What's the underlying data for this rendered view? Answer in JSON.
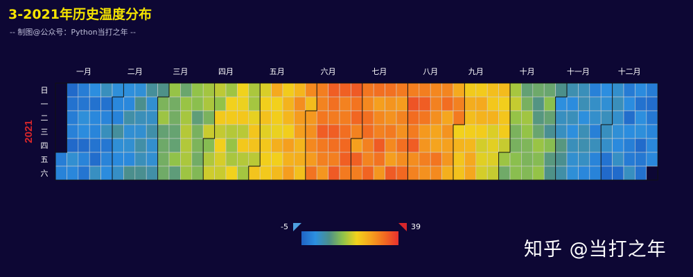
{
  "title": "3-2021年历史温度分布",
  "subtitle": "-- 制图@公众号：Python当打之年 --",
  "watermark": "知乎 @当打之年",
  "visual_map": {
    "min": -5,
    "max": 39,
    "min_label": "-5",
    "max_label": "39",
    "colors": [
      "#1f63c6",
      "#2c8fe0",
      "#4c8f8a",
      "#8fc24a",
      "#f2d21c",
      "#f5a21e",
      "#f26a21",
      "#e8312e"
    ]
  },
  "chart_data": {
    "type": "heatmap",
    "subtype": "calendar",
    "year_label": "2021",
    "first_weekday": 5,
    "months": [
      "一月",
      "二月",
      "三月",
      "四月",
      "五月",
      "六月",
      "七月",
      "八月",
      "九月",
      "十月",
      "十一月",
      "十二月"
    ],
    "weekdays": [
      "日",
      "一",
      "二",
      "三",
      "四",
      "五",
      "六"
    ],
    "monthly_temp_means": [
      -1,
      2,
      11,
      17,
      22,
      31,
      30,
      32,
      24,
      14,
      5,
      0
    ],
    "temp_range": [
      -5,
      39
    ],
    "cell_border_color": "#d0d0d0",
    "month_border_color": "#111111"
  }
}
